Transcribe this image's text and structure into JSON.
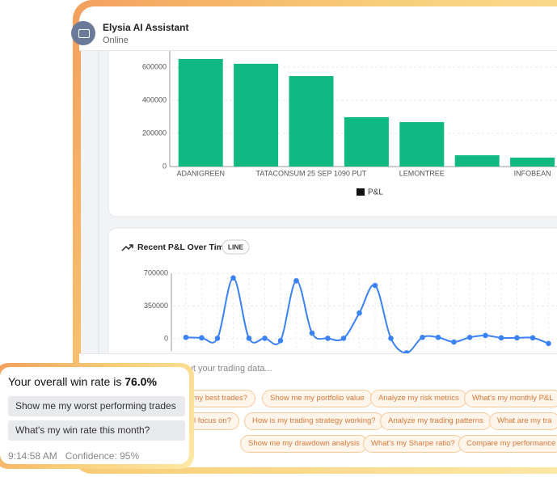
{
  "header": {
    "title": "Elysia AI Assistant",
    "status": "Online"
  },
  "chart_data": [
    {
      "type": "bar",
      "categories": [
        "ADANIGREEN",
        null,
        "TATACONSUM 25 SEP 1090 PUT",
        null,
        "LEMONTREE",
        null,
        "INFOBEAN"
      ],
      "series": [
        {
          "name": "P&L",
          "color": "#10b981",
          "values": [
            649000,
            620000,
            546000,
            298000,
            268000,
            68000,
            54000
          ]
        }
      ],
      "ylim": [
        0,
        700000
      ],
      "yticks": [
        0,
        200000,
        400000,
        600000
      ],
      "grid": true
    },
    {
      "type": "line",
      "title": "Recent P&L Over Time",
      "badge": "LINE",
      "color": "#3b82f6",
      "values": [
        15000,
        10000,
        5000,
        650000,
        5000,
        5000,
        -20000,
        620000,
        60000,
        5000,
        5000,
        275000,
        570000,
        5000,
        -150000,
        15000,
        15000,
        -35000,
        15000,
        35000,
        10000,
        10000,
        10000,
        -50000
      ],
      "ylim": [
        -50000,
        700000
      ],
      "yticks": [
        0,
        350000,
        700000
      ],
      "grid": true
    }
  ],
  "input": {
    "placeholder": "Ask about your trading data..."
  },
  "suggestions": [
    [
      "me my best trades?",
      "Show me my portfolio value",
      "Analyze my risk metrics",
      "What's my monthly P&L"
    ],
    [
      "l focus on?",
      "How is my trading strategy working?",
      "Analyze my trading patterns",
      "What are my tra"
    ],
    [
      "Show me my drawdown analysis",
      "What's my Sharpe ratio?",
      "Compare my performance"
    ]
  ],
  "popup": {
    "message": "Your overall win rate is",
    "value": "76.0%",
    "actions": [
      "Show me my worst performing trades",
      "What's my win rate this month?"
    ],
    "time": "9:14:58 AM",
    "confidence": "Confidence: 95%"
  }
}
